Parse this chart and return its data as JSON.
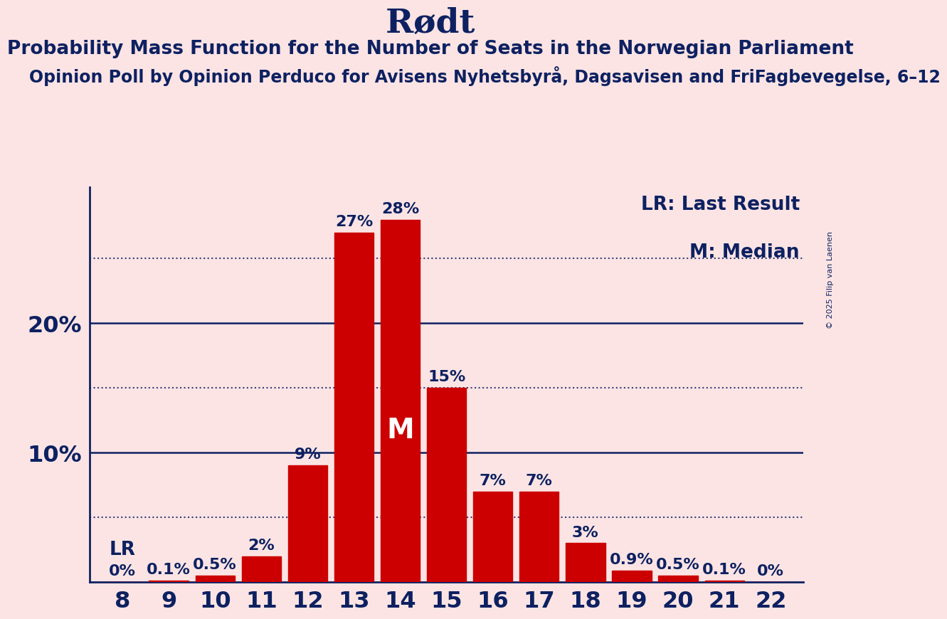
{
  "title": "Rødt",
  "subtitle1": "Probability Mass Function for the Number of Seats in the Norwegian Parliament",
  "subtitle2": "Opinion Poll by Opinion Perduco for Avisens Nyhetsbyrå, Dagsavisen and FriFagbevegelse, 6–12",
  "copyright": "© 2025 Filip van Laenen",
  "seats": [
    8,
    9,
    10,
    11,
    12,
    13,
    14,
    15,
    16,
    17,
    18,
    19,
    20,
    21,
    22
  ],
  "probabilities": [
    0.0,
    0.1,
    0.5,
    2.0,
    9.0,
    27.0,
    28.0,
    15.0,
    7.0,
    7.0,
    3.0,
    0.9,
    0.5,
    0.1,
    0.0
  ],
  "bar_color": "#cc0000",
  "background_color": "#fce4e4",
  "text_color_dark": "#0d2161",
  "median_seat": 14,
  "lr_seat": 8,
  "yticks": [
    10,
    20
  ],
  "ymax": 30.5,
  "dotted_lines": [
    5,
    15,
    25
  ],
  "solid_lines": [
    10,
    20
  ],
  "legend_lr": "LR: Last Result",
  "legend_m": "M: Median",
  "lr_label": "LR",
  "m_label": "M",
  "title_fontsize": 34,
  "subtitle1_fontsize": 19,
  "subtitle2_fontsize": 17,
  "bar_label_fontsize": 16,
  "legend_fontsize": 19,
  "tick_fontsize": 23,
  "m_fontsize": 28
}
